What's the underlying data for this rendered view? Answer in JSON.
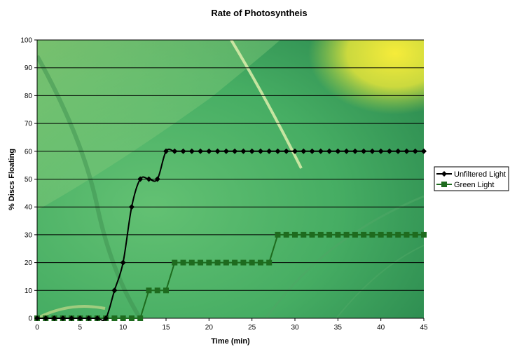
{
  "chart_data": {
    "type": "line",
    "title": "Rate of Photosyntheis",
    "xlabel": "Time (min)",
    "ylabel": "% Discs Floating",
    "xlim": [
      0,
      45
    ],
    "ylim": [
      0,
      100
    ],
    "xticks": [
      0,
      5,
      10,
      15,
      20,
      25,
      30,
      35,
      40,
      45
    ],
    "yticks": [
      0,
      10,
      20,
      30,
      40,
      50,
      60,
      70,
      80,
      90,
      100
    ],
    "grid": "horizontal",
    "legend_position": "right",
    "background": "green leaf photograph",
    "series": [
      {
        "name": "Unfiltered Light",
        "color": "#000000",
        "marker": "diamond",
        "x": [
          0,
          1,
          2,
          3,
          4,
          5,
          6,
          7,
          8,
          9,
          10,
          11,
          12,
          13,
          14,
          15,
          16,
          17,
          18,
          19,
          20,
          21,
          22,
          23,
          24,
          25,
          26,
          27,
          28,
          29,
          30,
          31,
          32,
          33,
          34,
          35,
          36,
          37,
          38,
          39,
          40,
          41,
          42,
          43,
          44,
          45
        ],
        "y": [
          0,
          0,
          0,
          0,
          0,
          0,
          0,
          0,
          0,
          10,
          20,
          40,
          50,
          50,
          50,
          60,
          60,
          60,
          60,
          60,
          60,
          60,
          60,
          60,
          60,
          60,
          60,
          60,
          60,
          60,
          60,
          60,
          60,
          60,
          60,
          60,
          60,
          60,
          60,
          60,
          60,
          60,
          60,
          60,
          60,
          60
        ]
      },
      {
        "name": "Green Light",
        "color": "#1e6b1e",
        "marker": "square",
        "x": [
          0,
          1,
          2,
          3,
          4,
          5,
          6,
          7,
          8,
          9,
          10,
          11,
          12,
          13,
          14,
          15,
          16,
          17,
          18,
          19,
          20,
          21,
          22,
          23,
          24,
          25,
          26,
          27,
          28,
          29,
          30,
          31,
          32,
          33,
          34,
          35,
          36,
          37,
          38,
          39,
          40,
          41,
          42,
          43,
          44,
          45
        ],
        "y": [
          0,
          0,
          0,
          0,
          0,
          0,
          0,
          0,
          0,
          0,
          0,
          0,
          0,
          10,
          10,
          10,
          20,
          20,
          20,
          20,
          20,
          20,
          20,
          20,
          20,
          20,
          20,
          20,
          30,
          30,
          30,
          30,
          30,
          30,
          30,
          30,
          30,
          30,
          30,
          30,
          30,
          30,
          30,
          30,
          30,
          30
        ]
      }
    ]
  }
}
